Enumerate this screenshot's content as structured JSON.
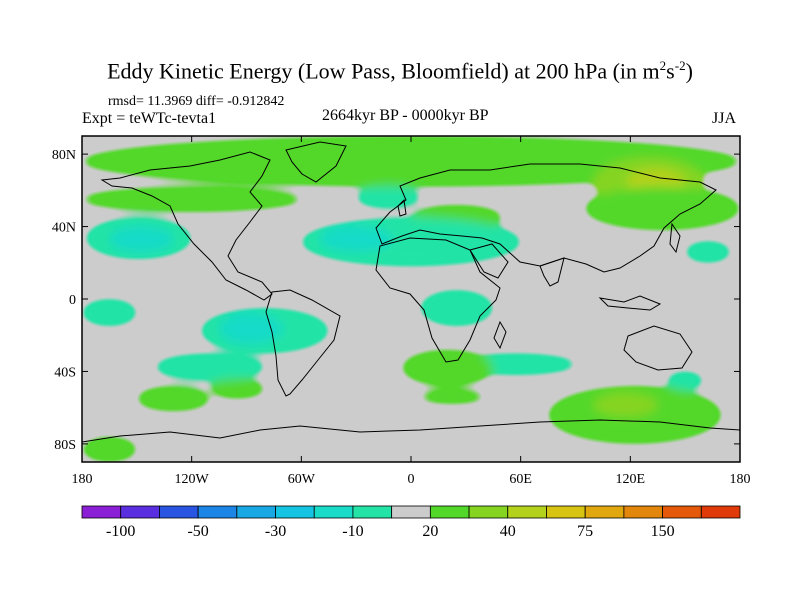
{
  "chart_data": {
    "type": "heatmap",
    "title": "Eddy Kinetic Energy (Low Pass, Bloomfield) at 200 hPa (in m",
    "title_unit_sup1": "2",
    "title_unit_mid": "s",
    "title_unit_sup2": "-2",
    "title_close": ")",
    "stats": "rmsd= 11.3969 diff= -0.912842",
    "expt": "Expt = teWTc-tevta1",
    "period": "2664kyr BP - 0000kyr BP",
    "season": "JJA",
    "x_ticks": [
      "180",
      "120W",
      "60W",
      "0",
      "60E",
      "120E",
      "180"
    ],
    "x_tick_values": [
      -180,
      -120,
      -60,
      0,
      60,
      120,
      180
    ],
    "y_ticks": [
      "80N",
      "40N",
      "0",
      "40S",
      "80S"
    ],
    "y_tick_values": [
      80,
      40,
      0,
      -40,
      -80
    ],
    "xlim": [
      -180,
      180
    ],
    "ylim": [
      -90,
      90
    ],
    "colorbar_labels": [
      "-100",
      "-50",
      "-30",
      "-10",
      "20",
      "40",
      "75",
      "150"
    ],
    "colorbar_label_bins": [
      1,
      3,
      5,
      7,
      9,
      11,
      13,
      15
    ],
    "colorbar_colors": [
      "#8a1fd6",
      "#5a2fe0",
      "#2a55e2",
      "#1c86e6",
      "#19a8e4",
      "#14c4e2",
      "#18dbc8",
      "#24e3a6",
      "#cccccc",
      "#52d82a",
      "#86d422",
      "#b4d21c",
      "#d6c312",
      "#e0a80e",
      "#e2860c",
      "#e45a0a",
      "#e03a08"
    ],
    "background_color": "#cccccc",
    "regions": [
      {
        "color": "#52d82a",
        "lon": [
          -180,
          180
        ],
        "lat": [
          62,
          90
        ]
      },
      {
        "color": "#86d422",
        "lon": [
          100,
          160
        ],
        "lat": [
          52,
          78
        ]
      },
      {
        "color": "#b4d21c",
        "lon": [
          118,
          150
        ],
        "lat": [
          56,
          72
        ]
      },
      {
        "color": "#52d82a",
        "lon": [
          -180,
          -60
        ],
        "lat": [
          48,
          62
        ]
      },
      {
        "color": "#52d82a",
        "lon": [
          95,
          180
        ],
        "lat": [
          38,
          62
        ]
      },
      {
        "color": "#52d82a",
        "lon": [
          0,
          50
        ],
        "lat": [
          38,
          52
        ]
      },
      {
        "color": "#24e3a6",
        "lon": [
          -178,
          -120
        ],
        "lat": [
          22,
          45
        ]
      },
      {
        "color": "#18dbc8",
        "lon": [
          -165,
          -130
        ],
        "lat": [
          26,
          40
        ]
      },
      {
        "color": "#24e3a6",
        "lon": [
          -60,
          60
        ],
        "lat": [
          18,
          45
        ]
      },
      {
        "color": "#18dbc8",
        "lon": [
          -50,
          -10
        ],
        "lat": [
          26,
          40
        ]
      },
      {
        "color": "#24e3a6",
        "lon": [
          -115,
          -45
        ],
        "lat": [
          -30,
          -5
        ]
      },
      {
        "color": "#18dbc8",
        "lon": [
          -105,
          -70
        ],
        "lat": [
          -25,
          -8
        ]
      },
      {
        "color": "#24e3a6",
        "lon": [
          5,
          45
        ],
        "lat": [
          -15,
          5
        ]
      },
      {
        "color": "#24e3a6",
        "lon": [
          -180,
          -150
        ],
        "lat": [
          -15,
          0
        ]
      },
      {
        "color": "#24e3a6",
        "lon": [
          -140,
          -80
        ],
        "lat": [
          -45,
          -30
        ]
      },
      {
        "color": "#24e3a6",
        "lon": [
          25,
          90
        ],
        "lat": [
          -42,
          -30
        ]
      },
      {
        "color": "#52d82a",
        "lon": [
          -5,
          45
        ],
        "lat": [
          -48,
          -28
        ]
      },
      {
        "color": "#52d82a",
        "lon": [
          -150,
          -110
        ],
        "lat": [
          -62,
          -48
        ]
      },
      {
        "color": "#52d82a",
        "lon": [
          -110,
          -80
        ],
        "lat": [
          -55,
          -44
        ]
      },
      {
        "color": "#52d82a",
        "lon": [
          5,
          40
        ],
        "lat": [
          -58,
          -50
        ]
      },
      {
        "color": "#52d82a",
        "lon": [
          75,
          170
        ],
        "lat": [
          -80,
          -48
        ]
      },
      {
        "color": "#86d422",
        "lon": [
          100,
          135
        ],
        "lat": [
          -65,
          -52
        ]
      },
      {
        "color": "#52d82a",
        "lon": [
          -180,
          -150
        ],
        "lat": [
          -90,
          -76
        ]
      },
      {
        "color": "#24e3a6",
        "lon": [
          -30,
          5
        ],
        "lat": [
          50,
          62
        ]
      },
      {
        "color": "#24e3a6",
        "lon": [
          150,
          175
        ],
        "lat": [
          20,
          32
        ]
      },
      {
        "color": "#24e3a6",
        "lon": [
          140,
          160
        ],
        "lat": [
          -50,
          -40
        ]
      }
    ]
  }
}
